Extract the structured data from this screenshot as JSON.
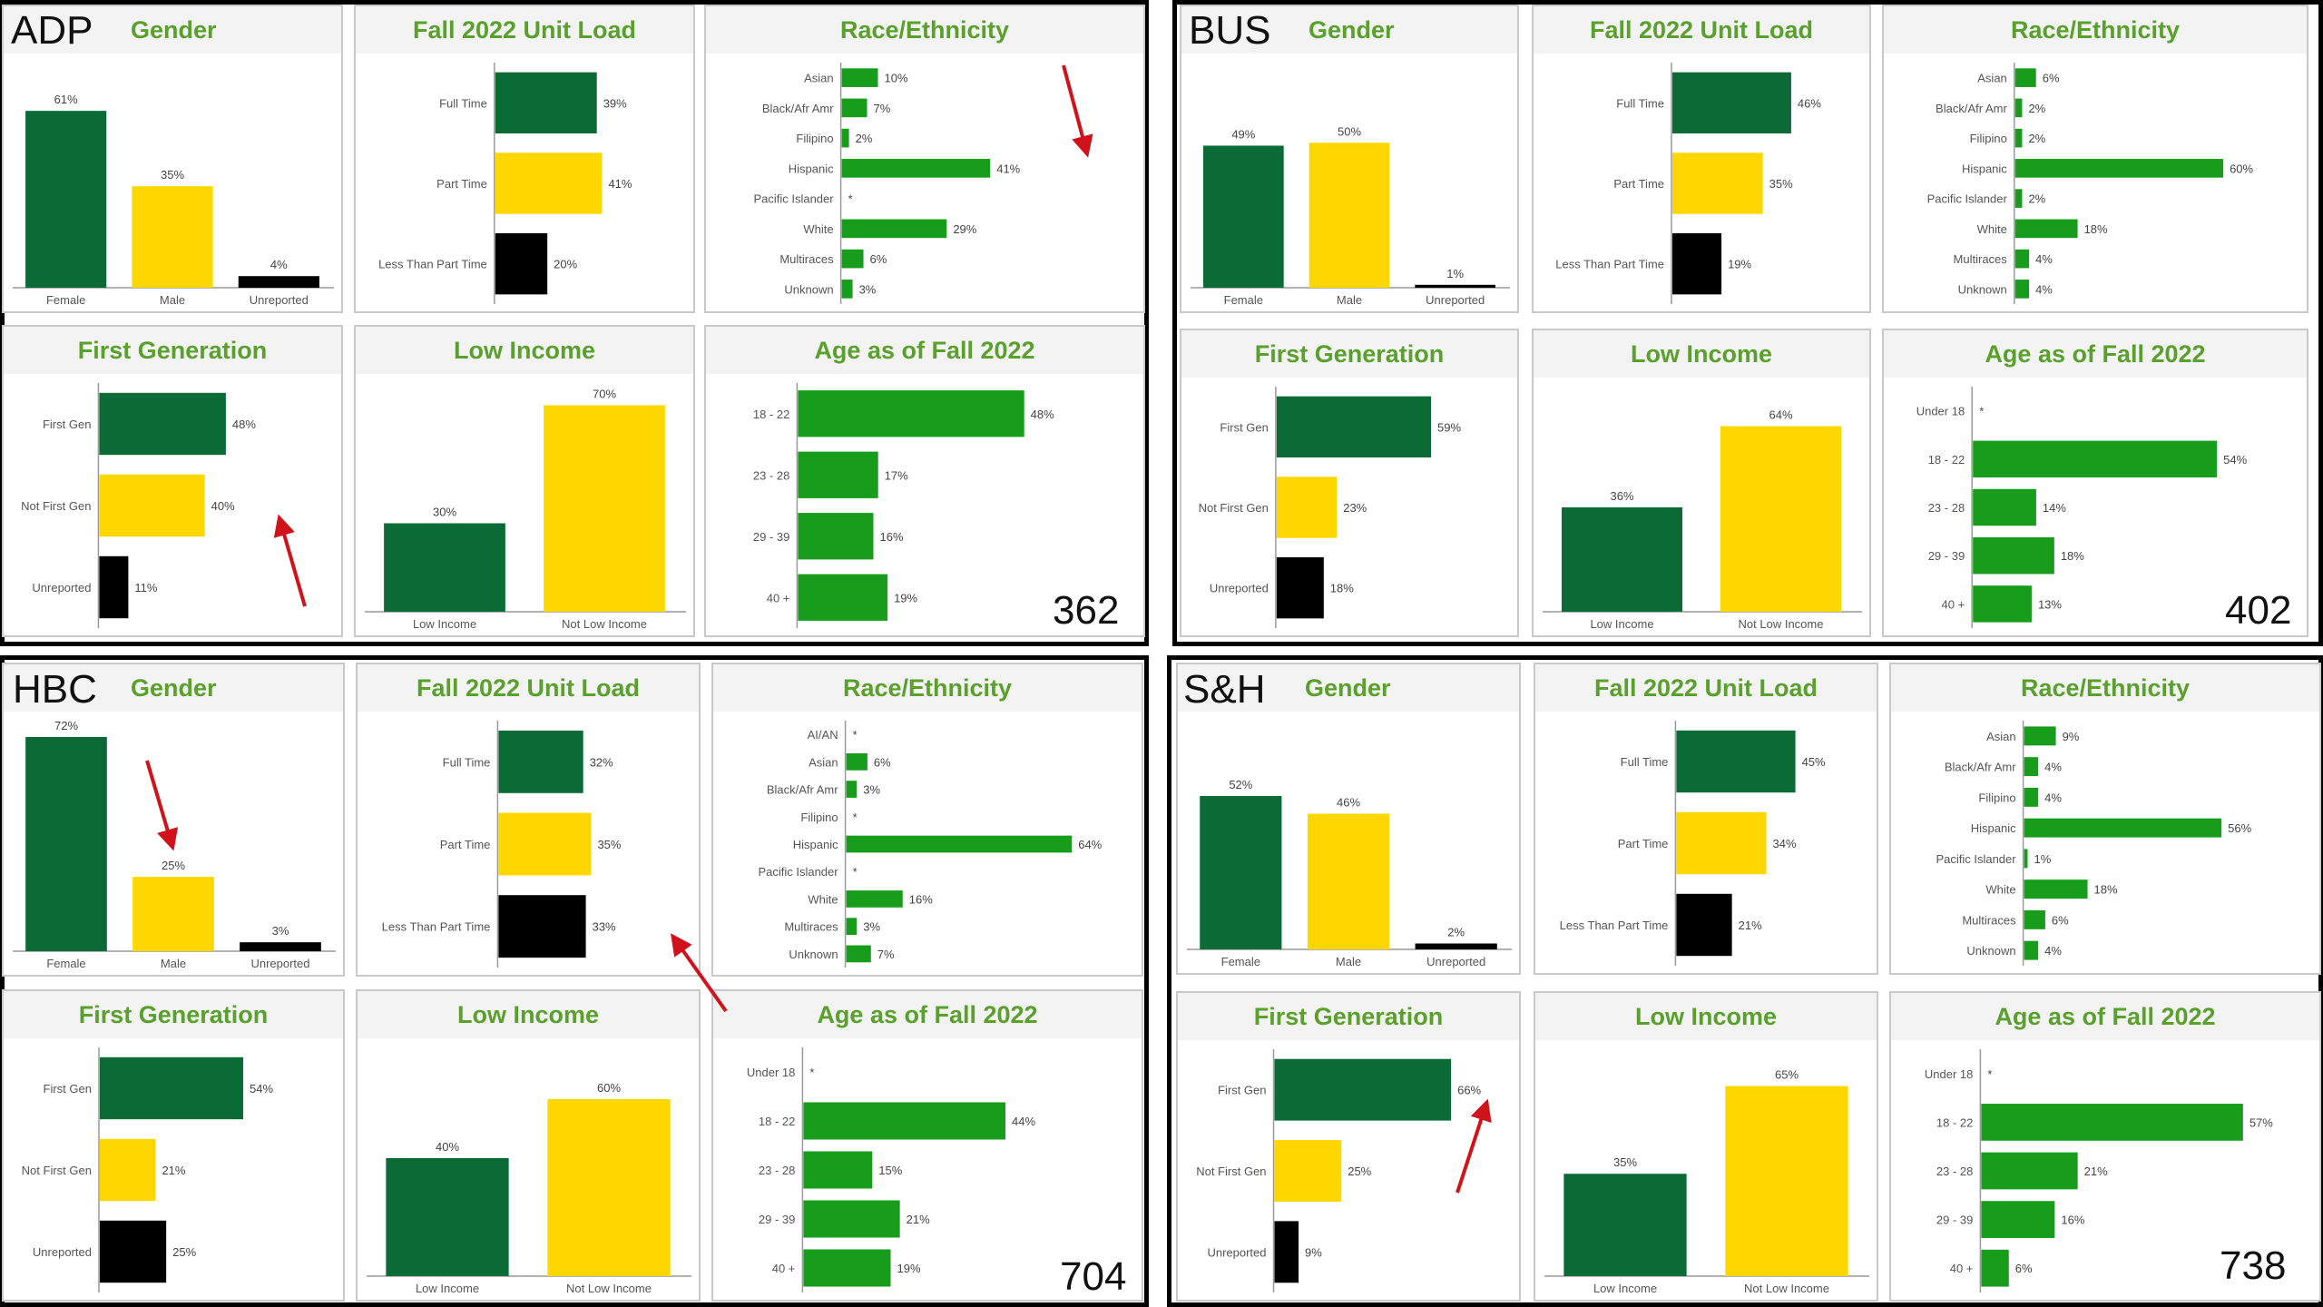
{
  "colors": {
    "green": "#0b6b36",
    "bright_green": "#179c1c",
    "yellow": "#ffd700",
    "black": "#000000",
    "title": "#5aa02c",
    "arrow": "#d0121b"
  },
  "quadrants": [
    {
      "code": "ADP",
      "total": "362",
      "tiles": {
        "gender": {
          "title": "Gender",
          "chart_data": {
            "type": "bar",
            "categories": [
              "Female",
              "Male",
              "Unreported"
            ],
            "values": [
              61,
              35,
              4
            ],
            "labels": [
              "61%",
              "35%",
              "4%"
            ]
          }
        },
        "unit_load": {
          "title": "Fall 2022 Unit Load",
          "chart_data": {
            "type": "bar",
            "orientation": "horizontal",
            "categories": [
              "Full Time",
              "Part Time",
              "Less Than Part Time"
            ],
            "values": [
              39,
              41,
              20
            ],
            "labels": [
              "39%",
              "41%",
              "20%"
            ]
          }
        },
        "race": {
          "title": "Race/Ethnicity",
          "chart_data": {
            "type": "bar",
            "orientation": "horizontal",
            "categories": [
              "Asian",
              "Black/Afr Amr",
              "Filipino",
              "Hispanic",
              "Pacific Islander",
              "White",
              "Multiraces",
              "Unknown"
            ],
            "values": [
              10,
              7,
              2,
              41,
              null,
              29,
              6,
              3
            ],
            "labels": [
              "10%",
              "7%",
              "2%",
              "41%",
              "*",
              "29%",
              "6%",
              "3%"
            ]
          }
        },
        "first_gen": {
          "title": "First Generation",
          "chart_data": {
            "type": "bar",
            "orientation": "horizontal",
            "categories": [
              "First Gen",
              "Not First Gen",
              "Unreported"
            ],
            "values": [
              48,
              40,
              11
            ],
            "labels": [
              "48%",
              "40%",
              "11%"
            ]
          }
        },
        "low_income": {
          "title": "Low Income",
          "chart_data": {
            "type": "bar",
            "categories": [
              "Low Income",
              "Not Low Income"
            ],
            "values": [
              30,
              70
            ],
            "labels": [
              "30%",
              "70%"
            ]
          }
        },
        "age": {
          "title": "Age as of Fall 2022",
          "chart_data": {
            "type": "bar",
            "orientation": "horizontal",
            "categories": [
              "18 - 22",
              "23 - 28",
              "29 - 39",
              "40 +"
            ],
            "values": [
              48,
              17,
              16,
              19
            ],
            "labels": [
              "48%",
              "17%",
              "16%",
              "19%"
            ]
          }
        }
      }
    },
    {
      "code": "BUS",
      "total": "402",
      "tiles": {
        "gender": {
          "title": "Gender",
          "chart_data": {
            "type": "bar",
            "categories": [
              "Female",
              "Male",
              "Unreported"
            ],
            "values": [
              49,
              50,
              1
            ],
            "labels": [
              "49%",
              "50%",
              "1%"
            ]
          }
        },
        "unit_load": {
          "title": "Fall 2022 Unit Load",
          "chart_data": {
            "type": "bar",
            "orientation": "horizontal",
            "categories": [
              "Full Time",
              "Part Time",
              "Less Than Part Time"
            ],
            "values": [
              46,
              35,
              19
            ],
            "labels": [
              "46%",
              "35%",
              "19%"
            ]
          }
        },
        "race": {
          "title": "Race/Ethnicity",
          "chart_data": {
            "type": "bar",
            "orientation": "horizontal",
            "categories": [
              "Asian",
              "Black/Afr Amr",
              "Filipino",
              "Hispanic",
              "Pacific Islander",
              "White",
              "Multiraces",
              "Unknown"
            ],
            "values": [
              6,
              2,
              2,
              60,
              2,
              18,
              4,
              4
            ],
            "labels": [
              "6%",
              "2%",
              "2%",
              "60%",
              "2%",
              "18%",
              "4%",
              "4%"
            ]
          }
        },
        "first_gen": {
          "title": "First Generation",
          "chart_data": {
            "type": "bar",
            "orientation": "horizontal",
            "categories": [
              "First Gen",
              "Not First Gen",
              "Unreported"
            ],
            "values": [
              59,
              23,
              18
            ],
            "labels": [
              "59%",
              "23%",
              "18%"
            ]
          }
        },
        "low_income": {
          "title": "Low Income",
          "chart_data": {
            "type": "bar",
            "categories": [
              "Low Income",
              "Not Low Income"
            ],
            "values": [
              36,
              64
            ],
            "labels": [
              "36%",
              "64%"
            ]
          }
        },
        "age": {
          "title": "Age as of Fall 2022",
          "chart_data": {
            "type": "bar",
            "orientation": "horizontal",
            "categories": [
              "Under 18",
              "18 - 22",
              "23 - 28",
              "29 - 39",
              "40 +"
            ],
            "values": [
              null,
              54,
              14,
              18,
              13
            ],
            "labels": [
              "*",
              "54%",
              "14%",
              "18%",
              "13%"
            ]
          }
        }
      }
    },
    {
      "code": "HBC",
      "total": "704",
      "tiles": {
        "gender": {
          "title": "Gender",
          "chart_data": {
            "type": "bar",
            "categories": [
              "Female",
              "Male",
              "Unreported"
            ],
            "values": [
              72,
              25,
              3
            ],
            "labels": [
              "72%",
              "25%",
              "3%"
            ]
          }
        },
        "unit_load": {
          "title": "Fall 2022 Unit Load",
          "chart_data": {
            "type": "bar",
            "orientation": "horizontal",
            "categories": [
              "Full Time",
              "Part Time",
              "Less Than Part Time"
            ],
            "values": [
              32,
              35,
              33
            ],
            "labels": [
              "32%",
              "35%",
              "33%"
            ]
          }
        },
        "race": {
          "title": "Race/Ethnicity",
          "chart_data": {
            "type": "bar",
            "orientation": "horizontal",
            "categories": [
              "AI/AN",
              "Asian",
              "Black/Afr Amr",
              "Filipino",
              "Hispanic",
              "Pacific Islander",
              "White",
              "Multiraces",
              "Unknown"
            ],
            "values": [
              null,
              6,
              3,
              null,
              64,
              null,
              16,
              3,
              7
            ],
            "labels": [
              "*",
              "6%",
              "3%",
              "*",
              "64%",
              "*",
              "16%",
              "3%",
              "7%"
            ]
          }
        },
        "first_gen": {
          "title": "First Generation",
          "chart_data": {
            "type": "bar",
            "orientation": "horizontal",
            "categories": [
              "First Gen",
              "Not First Gen",
              "Unreported"
            ],
            "values": [
              54,
              21,
              25
            ],
            "labels": [
              "54%",
              "21%",
              "25%"
            ]
          }
        },
        "low_income": {
          "title": "Low Income",
          "chart_data": {
            "type": "bar",
            "categories": [
              "Low Income",
              "Not Low Income"
            ],
            "values": [
              40,
              60
            ],
            "labels": [
              "40%",
              "60%"
            ]
          }
        },
        "age": {
          "title": "Age as of Fall 2022",
          "chart_data": {
            "type": "bar",
            "orientation": "horizontal",
            "categories": [
              "Under 18",
              "18 - 22",
              "23 - 28",
              "29 - 39",
              "40 +"
            ],
            "values": [
              null,
              44,
              15,
              21,
              19
            ],
            "labels": [
              "*",
              "44%",
              "15%",
              "21%",
              "19%"
            ]
          }
        }
      }
    },
    {
      "code": "S&H",
      "total": "738",
      "tiles": {
        "gender": {
          "title": "Gender",
          "chart_data": {
            "type": "bar",
            "categories": [
              "Female",
              "Male",
              "Unreported"
            ],
            "values": [
              52,
              46,
              2
            ],
            "labels": [
              "52%",
              "46%",
              "2%"
            ]
          }
        },
        "unit_load": {
          "title": "Fall 2022 Unit Load",
          "chart_data": {
            "type": "bar",
            "orientation": "horizontal",
            "categories": [
              "Full Time",
              "Part Time",
              "Less Than Part Time"
            ],
            "values": [
              45,
              34,
              21
            ],
            "labels": [
              "45%",
              "34%",
              "21%"
            ]
          }
        },
        "race": {
          "title": "Race/Ethnicity",
          "chart_data": {
            "type": "bar",
            "orientation": "horizontal",
            "categories": [
              "Asian",
              "Black/Afr Amr",
              "Filipino",
              "Hispanic",
              "Pacific Islander",
              "White",
              "Multiraces",
              "Unknown"
            ],
            "values": [
              9,
              4,
              4,
              56,
              1,
              18,
              6,
              4
            ],
            "labels": [
              "9%",
              "4%",
              "4%",
              "56%",
              "1%",
              "18%",
              "6%",
              "4%"
            ]
          }
        },
        "first_gen": {
          "title": "First Generation",
          "chart_data": {
            "type": "bar",
            "orientation": "horizontal",
            "categories": [
              "First Gen",
              "Not First Gen",
              "Unreported"
            ],
            "values": [
              66,
              25,
              9
            ],
            "labels": [
              "66%",
              "25%",
              "9%"
            ]
          }
        },
        "low_income": {
          "title": "Low Income",
          "chart_data": {
            "type": "bar",
            "categories": [
              "Low Income",
              "Not Low Income"
            ],
            "values": [
              35,
              65
            ],
            "labels": [
              "35%",
              "65%"
            ]
          }
        },
        "age": {
          "title": "Age as of Fall 2022",
          "chart_data": {
            "type": "bar",
            "orientation": "horizontal",
            "categories": [
              "Under 18",
              "18 - 22",
              "23 - 28",
              "29 - 39",
              "40 +"
            ],
            "values": [
              null,
              57,
              21,
              16,
              6
            ],
            "labels": [
              "*",
              "57%",
              "21%",
              "16%",
              "6%"
            ]
          }
        }
      }
    }
  ]
}
